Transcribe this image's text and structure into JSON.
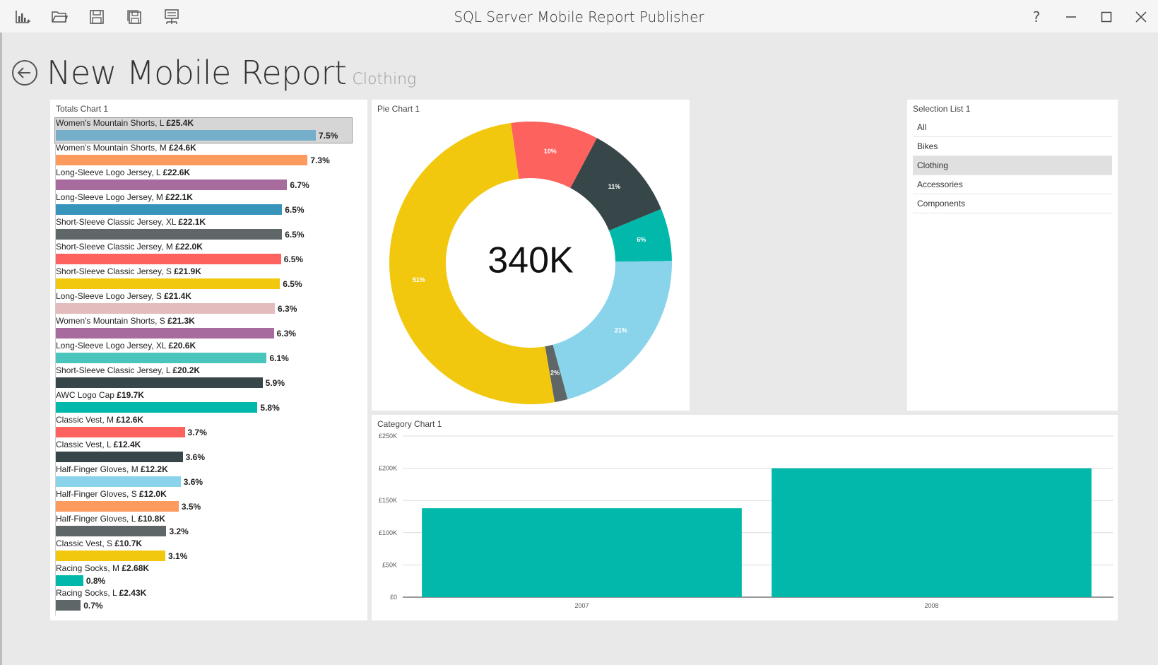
{
  "app": {
    "title": "SQL Server Mobile Report Publisher"
  },
  "toolbar": {
    "icons": [
      "new-report-icon",
      "open-folder-icon",
      "save-icon",
      "save-as-icon",
      "publish-server-icon"
    ]
  },
  "window": {
    "help_label": "?"
  },
  "report": {
    "title": "New Mobile Report",
    "subtitle": "Clothing"
  },
  "totals_chart": {
    "title": "Totals Chart 1",
    "items": [
      {
        "name": "Women's Mountain Shorts, L",
        "value_label": "£25.4K",
        "pct_label": "7.5%",
        "value": 25.4,
        "color": "#74aec8",
        "selected": true
      },
      {
        "name": "Women's Mountain Shorts, M",
        "value_label": "£24.6K",
        "pct_label": "7.3%",
        "value": 24.6,
        "color": "#fd9a5e"
      },
      {
        "name": "Long-Sleeve Logo Jersey, L",
        "value_label": "£22.6K",
        "pct_label": "6.7%",
        "value": 22.6,
        "color": "#a86b9e"
      },
      {
        "name": "Long-Sleeve Logo Jersey, M",
        "value_label": "£22.1K",
        "pct_label": "6.5%",
        "value": 22.1,
        "color": "#3795bc"
      },
      {
        "name": "Short-Sleeve Classic Jersey, XL",
        "value_label": "£22.1K",
        "pct_label": "6.5%",
        "value": 22.1,
        "color": "#5e6667"
      },
      {
        "name": "Short-Sleeve Classic Jersey, M",
        "value_label": "£22.0K",
        "pct_label": "6.5%",
        "value": 22.0,
        "color": "#fd625e"
      },
      {
        "name": "Short-Sleeve Classic Jersey, S",
        "value_label": "£21.9K",
        "pct_label": "6.5%",
        "value": 21.9,
        "color": "#f2c80f"
      },
      {
        "name": "Long-Sleeve Logo Jersey, S",
        "value_label": "£21.4K",
        "pct_label": "6.3%",
        "value": 21.4,
        "color": "#e3bcbd"
      },
      {
        "name": "Women's Mountain Shorts, S",
        "value_label": "£21.3K",
        "pct_label": "6.3%",
        "value": 21.3,
        "color": "#a86b9e"
      },
      {
        "name": "Long-Sleeve Logo Jersey, XL",
        "value_label": "£20.6K",
        "pct_label": "6.1%",
        "value": 20.6,
        "color": "#4ac5bb"
      },
      {
        "name": "Short-Sleeve Classic Jersey, L",
        "value_label": "£20.2K",
        "pct_label": "5.9%",
        "value": 20.2,
        "color": "#374649"
      },
      {
        "name": "AWC Logo Cap",
        "value_label": "£19.7K",
        "pct_label": "5.8%",
        "value": 19.7,
        "color": "#01b8aa"
      },
      {
        "name": "Classic Vest, M",
        "value_label": "£12.6K",
        "pct_label": "3.7%",
        "value": 12.6,
        "color": "#fd625e"
      },
      {
        "name": "Classic Vest, L",
        "value_label": "£12.4K",
        "pct_label": "3.6%",
        "value": 12.4,
        "color": "#374649"
      },
      {
        "name": "Half-Finger Gloves, M",
        "value_label": "£12.2K",
        "pct_label": "3.6%",
        "value": 12.2,
        "color": "#8ad4eb"
      },
      {
        "name": "Half-Finger Gloves, S",
        "value_label": "£12.0K",
        "pct_label": "3.5%",
        "value": 12.0,
        "color": "#fd9a5e"
      },
      {
        "name": "Half-Finger Gloves, L",
        "value_label": "£10.8K",
        "pct_label": "3.2%",
        "value": 10.8,
        "color": "#5e6667"
      },
      {
        "name": "Classic Vest, S",
        "value_label": "£10.7K",
        "pct_label": "3.1%",
        "value": 10.7,
        "color": "#f2c80f"
      },
      {
        "name": "Racing Socks, M",
        "value_label": "£2.68K",
        "pct_label": "0.8%",
        "value": 2.68,
        "color": "#01b8aa"
      },
      {
        "name": "Racing Socks, L",
        "value_label": "£2.43K",
        "pct_label": "0.7%",
        "value": 2.43,
        "color": "#5e6667"
      }
    ]
  },
  "pie_chart": {
    "title": "Pie Chart 1",
    "center_label": "340K",
    "slices": [
      {
        "label": "10%",
        "value": 10,
        "color": "#fd625e"
      },
      {
        "label": "11%",
        "value": 11,
        "color": "#374649"
      },
      {
        "label": "6%",
        "value": 6,
        "color": "#01b8aa"
      },
      {
        "label": "21%",
        "value": 21,
        "color": "#8ad4eb"
      },
      {
        "label": "2%",
        "value": 1.5,
        "color": "#5e6667"
      },
      {
        "label": "51%",
        "value": 50.5,
        "color": "#f2c80f"
      }
    ]
  },
  "selection_list": {
    "title": "Selection List 1",
    "items": [
      "All",
      "Bikes",
      "Clothing",
      "Accessories",
      "Components"
    ],
    "selected": "Clothing"
  },
  "category_chart": {
    "title": "Category Chart 1",
    "y_ticks": [
      "£0",
      "£50K",
      "£100K",
      "£150K",
      "£200K",
      "£250K"
    ],
    "color": "#01b8aa"
  },
  "chart_data": [
    {
      "type": "bar",
      "orientation": "horizontal",
      "title": "Totals Chart 1",
      "categories": [
        "Women's Mountain Shorts, L",
        "Women's Mountain Shorts, M",
        "Long-Sleeve Logo Jersey, L",
        "Long-Sleeve Logo Jersey, M",
        "Short-Sleeve Classic Jersey, XL",
        "Short-Sleeve Classic Jersey, M",
        "Short-Sleeve Classic Jersey, S",
        "Long-Sleeve Logo Jersey, S",
        "Women's Mountain Shorts, S",
        "Long-Sleeve Logo Jersey, XL",
        "Short-Sleeve Classic Jersey, L",
        "AWC Logo Cap",
        "Classic Vest, M",
        "Classic Vest, L",
        "Half-Finger Gloves, M",
        "Half-Finger Gloves, S",
        "Half-Finger Gloves, L",
        "Classic Vest, S",
        "Racing Socks, M",
        "Racing Socks, L"
      ],
      "values": [
        25.4,
        24.6,
        22.6,
        22.1,
        22.1,
        22.0,
        21.9,
        21.4,
        21.3,
        20.6,
        20.2,
        19.7,
        12.6,
        12.4,
        12.2,
        12.0,
        10.8,
        10.7,
        2.68,
        2.43
      ],
      "units": "£K"
    },
    {
      "type": "pie",
      "title": "Pie Chart 1",
      "labels": [
        "10%",
        "11%",
        "6%",
        "21%",
        "2%",
        "51%"
      ],
      "values": [
        10,
        11,
        6,
        21,
        1.5,
        50.5
      ]
    },
    {
      "type": "bar",
      "title": "Category Chart 1",
      "categories": [
        "2007",
        "2008"
      ],
      "values": [
        138000,
        200000
      ],
      "ylim": [
        0,
        250000
      ],
      "grid": true
    }
  ]
}
